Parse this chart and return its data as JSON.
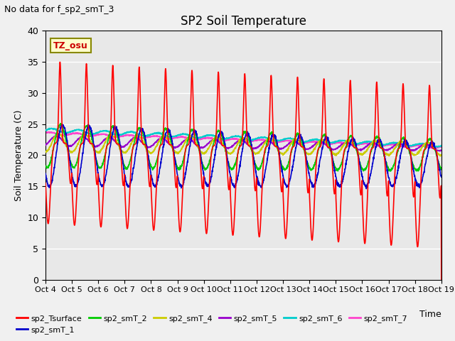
{
  "title": "SP2 Soil Temperature",
  "subtitle": "No data for f_sp2_smT_3",
  "ylabel": "Soil Temperature (C)",
  "xlabel": "Time",
  "tz_label": "TZ_osu",
  "ylim": [
    0,
    40
  ],
  "plot_bg_color": "#e8e8e8",
  "fig_bg_color": "#f0f0f0",
  "series": {
    "sp2_Tsurface": {
      "color": "#ff0000",
      "lw": 1.2
    },
    "sp2_smT_1": {
      "color": "#0000cc",
      "lw": 1.2
    },
    "sp2_smT_2": {
      "color": "#00cc00",
      "lw": 1.2
    },
    "sp2_smT_4": {
      "color": "#cccc00",
      "lw": 1.2
    },
    "sp2_smT_5": {
      "color": "#9900cc",
      "lw": 1.2
    },
    "sp2_smT_6": {
      "color": "#00cccc",
      "lw": 1.2
    },
    "sp2_smT_7": {
      "color": "#ff44cc",
      "lw": 1.5
    }
  },
  "x_tick_labels": [
    "Oct 4",
    "Oct 5",
    "Oct 6",
    "Oct 7",
    "Oct 8",
    "Oct 9",
    "Oct 10",
    "Oct 11",
    "Oct 12",
    "Oct 13",
    "Oct 14",
    "Oct 15",
    "Oct 16",
    "Oct 17",
    "Oct 18",
    "Oct 19"
  ],
  "y_ticks": [
    0,
    5,
    10,
    15,
    20,
    25,
    30,
    35,
    40
  ],
  "grid_color": "#ffffff",
  "num_days": 15
}
